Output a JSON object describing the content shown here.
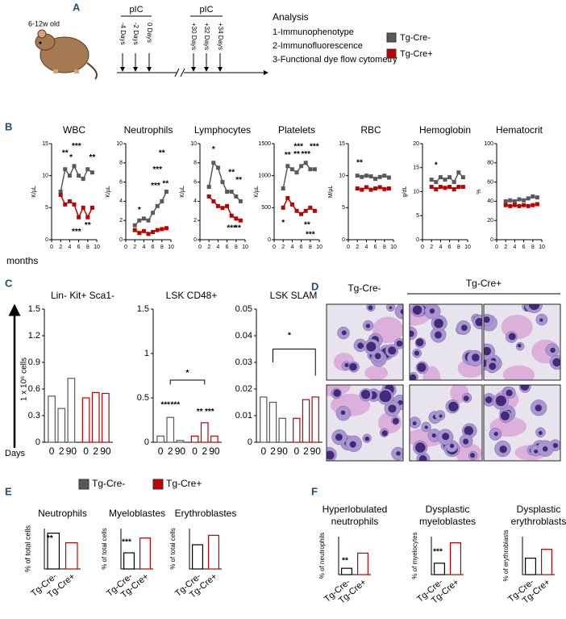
{
  "panel_a": {
    "label": "A",
    "age": "6-12w old",
    "pic_labels": [
      "pIC",
      "pIC"
    ],
    "days": [
      "-4 Days",
      "-2 Days",
      "0 Days",
      "+30 Days",
      "+32 Days",
      "+34 Days"
    ],
    "analysis_title": "Analysis",
    "analysis_items": [
      "1-Immunophenotype",
      "2-Immunofluorescence",
      "3-Functional dye flow cytometry"
    ],
    "legend": [
      {
        "name": "Tg-Cre-",
        "color": "#595959"
      },
      {
        "name": "Tg-Cre+",
        "color": "#c00000"
      }
    ]
  },
  "panel_b": {
    "label": "B",
    "x_label": "months"
  },
  "panel_c": {
    "label": "C",
    "y_label": "1 x 10⁶ cells",
    "x_label": "Days",
    "legend": [
      {
        "name": "Tg-Cre-",
        "color": "#595959"
      },
      {
        "name": "Tg-Cre+",
        "color": "#c00000"
      }
    ]
  },
  "panel_d": {
    "label": "D",
    "groups": [
      "Tg-Cre-",
      "Tg-Cre+"
    ]
  },
  "panel_e": {
    "label": "E"
  },
  "panel_f": {
    "label": "F"
  },
  "chart_data": [
    {
      "type": "line",
      "title": "WBC",
      "y_label": "K/µL",
      "x": [
        2,
        3,
        4,
        5,
        6,
        7,
        8,
        9
      ],
      "xlim": [
        0,
        10
      ],
      "xticks": [
        0,
        2,
        4,
        6,
        8,
        10
      ],
      "ylim": [
        0,
        15
      ],
      "yticks": [
        0,
        5,
        10,
        15
      ],
      "series": [
        {
          "color": "#595959",
          "values": [
            7.5,
            11,
            10,
            11.5,
            10,
            9.5,
            11,
            10.5
          ]
        },
        {
          "color": "#c00000",
          "values": [
            7,
            5.5,
            6,
            5.5,
            3.5,
            5,
            3.5,
            5
          ]
        }
      ],
      "annotations": [
        "**",
        "*",
        "***",
        "**",
        "**",
        "***"
      ]
    },
    {
      "type": "line",
      "title": "Neutrophils",
      "y_label": "K/µL",
      "x": [
        2,
        3,
        4,
        5,
        6,
        7,
        8,
        9
      ],
      "xlim": [
        0,
        10
      ],
      "xticks": [
        0,
        2,
        4,
        6,
        8,
        10
      ],
      "ylim": [
        0,
        10
      ],
      "yticks": [
        0,
        2,
        4,
        6,
        8,
        10
      ],
      "series": [
        {
          "color": "#595959",
          "values": [
            1.5,
            2,
            2.2,
            2,
            2.8,
            3.5,
            4,
            5
          ]
        },
        {
          "color": "#c00000",
          "values": [
            1,
            0.7,
            0.9,
            0.6,
            0.8,
            1,
            1.1,
            1.2
          ]
        }
      ],
      "annotations": [
        "**",
        "***",
        "***",
        "**",
        "*"
      ]
    },
    {
      "type": "line",
      "title": "Lymphocytes",
      "y_label": "K/µL",
      "x": [
        2,
        3,
        4,
        5,
        6,
        7,
        8,
        9
      ],
      "xlim": [
        0,
        10
      ],
      "xticks": [
        0,
        2,
        4,
        6,
        8,
        10
      ],
      "ylim": [
        0,
        10
      ],
      "yticks": [
        0,
        2,
        4,
        6,
        8,
        10
      ],
      "series": [
        {
          "color": "#595959",
          "values": [
            5.5,
            8,
            7.5,
            6,
            5,
            5,
            4.5,
            4
          ]
        },
        {
          "color": "#c00000",
          "values": [
            4.5,
            4,
            3.5,
            3.3,
            3.5,
            2.5,
            2.2,
            2
          ]
        }
      ],
      "annotations": [
        "*",
        "**",
        "**",
        "***",
        "**"
      ]
    },
    {
      "type": "line",
      "title": "Platelets",
      "y_label": "K/µL",
      "x": [
        2,
        3,
        4,
        5,
        6,
        7,
        8,
        9
      ],
      "xlim": [
        0,
        10
      ],
      "xticks": [
        0,
        2,
        4,
        6,
        8,
        10
      ],
      "ylim": [
        0,
        1500
      ],
      "yticks": [
        0,
        500,
        1000,
        1500
      ],
      "series": [
        {
          "color": "#595959",
          "values": [
            800,
            1150,
            1100,
            1050,
            1150,
            1200,
            1100,
            1100
          ]
        },
        {
          "color": "#c00000",
          "values": [
            500,
            650,
            550,
            450,
            400,
            450,
            500,
            450
          ]
        }
      ],
      "annotations": [
        "**",
        "***",
        "**",
        "***",
        "***",
        "*",
        "**",
        "***"
      ]
    },
    {
      "type": "line",
      "title": "RBC",
      "y_label": "M/µL",
      "x": [
        2,
        3,
        4,
        5,
        6,
        7,
        8,
        9
      ],
      "xlim": [
        0,
        10
      ],
      "xticks": [
        0,
        2,
        4,
        6,
        8,
        10
      ],
      "ylim": [
        0,
        15
      ],
      "yticks": [
        0,
        5,
        10,
        15
      ],
      "series": [
        {
          "color": "#595959",
          "values": [
            10,
            9.8,
            10,
            9.9,
            9.5,
            9.8,
            10,
            9.7
          ]
        },
        {
          "color": "#c00000",
          "values": [
            8,
            7.8,
            8.2,
            7.8,
            8,
            8.2,
            7.9,
            8
          ]
        }
      ],
      "annotations": [
        "**"
      ]
    },
    {
      "type": "line",
      "title": "Hemoglobin",
      "y_label": "g/dL",
      "x": [
        2,
        3,
        4,
        5,
        6,
        7,
        8,
        9
      ],
      "xlim": [
        0,
        10
      ],
      "xticks": [
        0,
        2,
        4,
        6,
        8,
        10
      ],
      "ylim": [
        0,
        20
      ],
      "yticks": [
        0,
        5,
        10,
        15,
        20
      ],
      "series": [
        {
          "color": "#595959",
          "values": [
            12.5,
            12,
            13,
            12.5,
            13,
            12,
            14,
            13
          ]
        },
        {
          "color": "#c00000",
          "values": [
            11,
            10.5,
            11,
            10.8,
            11,
            10.5,
            11,
            11
          ]
        }
      ],
      "annotations": [
        "*"
      ]
    },
    {
      "type": "line",
      "title": "Hematocrit",
      "y_label": "%",
      "x": [
        2,
        3,
        4,
        5,
        6,
        7,
        8,
        9
      ],
      "xlim": [
        0,
        10
      ],
      "xticks": [
        0,
        2,
        4,
        6,
        8,
        10
      ],
      "ylim": [
        0,
        100
      ],
      "yticks": [
        0,
        20,
        40,
        60,
        80,
        100
      ],
      "series": [
        {
          "color": "#595959",
          "values": [
            40,
            41,
            40,
            42,
            41,
            43,
            45,
            44
          ]
        },
        {
          "color": "#c00000",
          "values": [
            36,
            35,
            36,
            35,
            36,
            35,
            36,
            37
          ]
        }
      ],
      "annotations": []
    },
    {
      "type": "bar",
      "title": "Lin- Kit+ Sca1-",
      "categories": [
        "0",
        "2",
        "90"
      ],
      "ylim": [
        0,
        1.5
      ],
      "yticks": [
        0,
        0.3,
        0.6,
        0.9,
        1.2,
        1.5
      ],
      "series": [
        {
          "color": "#595959",
          "values": [
            0.52,
            0.38,
            0.72
          ]
        },
        {
          "color": "#c00000",
          "values": [
            0.5,
            0.56,
            0.55
          ]
        }
      ],
      "annotations": []
    },
    {
      "type": "bar",
      "title": "LSK CD48+",
      "categories": [
        "0",
        "2",
        "90"
      ],
      "ylim": [
        0,
        1.5
      ],
      "yticks": [
        0,
        0.5,
        1,
        1.5
      ],
      "series": [
        {
          "color": "#595959",
          "values": [
            0.07,
            0.28,
            0.02
          ]
        },
        {
          "color": "#c00000",
          "values": [
            0.07,
            0.22,
            0.07
          ]
        }
      ],
      "annotations": [
        "***",
        "***",
        "*",
        "**",
        "***"
      ]
    },
    {
      "type": "bar",
      "title": "LSK SLAM",
      "categories": [
        "0",
        "2",
        "90"
      ],
      "ylim": [
        0,
        0.05
      ],
      "yticks": [
        0,
        0.01,
        0.02,
        0.03,
        0.04,
        0.05
      ],
      "series": [
        {
          "color": "#595959",
          "values": [
            0.017,
            0.015,
            0.009
          ]
        },
        {
          "color": "#c00000",
          "values": [
            0.009,
            0.016,
            0.017
          ]
        }
      ],
      "annotations": [
        "*"
      ]
    },
    {
      "type": "bar",
      "title": "Neutrophils",
      "y_label": "% of total cells",
      "categories": [
        "Tg-Cre-",
        "Tg-Cre+"
      ],
      "values": [
        71,
        52
      ],
      "colors": [
        "#000000",
        "#c00000"
      ],
      "ylim": [
        0,
        80
      ],
      "annotations": [
        "**"
      ]
    },
    {
      "type": "bar",
      "title": "Myeloblastes",
      "y_label": "% of total cells",
      "categories": [
        "Tg-Cre-",
        "Tg-Cre+"
      ],
      "values": [
        12,
        23
      ],
      "colors": [
        "#000000",
        "#c00000"
      ],
      "ylim": [
        0,
        30
      ],
      "annotations": [
        "***"
      ]
    },
    {
      "type": "bar",
      "title": "Erythroblastes",
      "y_label": "% of total cells",
      "categories": [
        "Tg-Cre-",
        "Tg-Cre+"
      ],
      "values": [
        18,
        25
      ],
      "colors": [
        "#000000",
        "#c00000"
      ],
      "ylim": [
        0,
        30
      ],
      "annotations": []
    },
    {
      "type": "bar",
      "title": [
        "Hyperlobulated",
        "neutrophils"
      ],
      "y_label": "% of neutrophils",
      "categories": [
        "Tg-Cre-",
        "Tg-Cre+"
      ],
      "values": [
        5,
        17
      ],
      "colors": [
        "#000000",
        "#c00000"
      ],
      "ylim": [
        0,
        30
      ],
      "annotations": [
        "**"
      ]
    },
    {
      "type": "bar",
      "title": [
        "Dysplastic",
        "myeloblastes"
      ],
      "y_label": "% of myelocytes",
      "categories": [
        "Tg-Cre-",
        "Tg-Cre+"
      ],
      "values": [
        15,
        42
      ],
      "colors": [
        "#000000",
        "#c00000"
      ],
      "ylim": [
        0,
        50
      ],
      "annotations": [
        "***"
      ]
    },
    {
      "type": "bar",
      "title": [
        "Dysplastic",
        "erythroblasts"
      ],
      "y_label": "% of erythroblasts",
      "categories": [
        "Tg-Cre-",
        "Tg-Cre+"
      ],
      "values": [
        13,
        20
      ],
      "colors": [
        "#000000",
        "#c00000"
      ],
      "ylim": [
        0,
        30
      ],
      "annotations": []
    }
  ]
}
